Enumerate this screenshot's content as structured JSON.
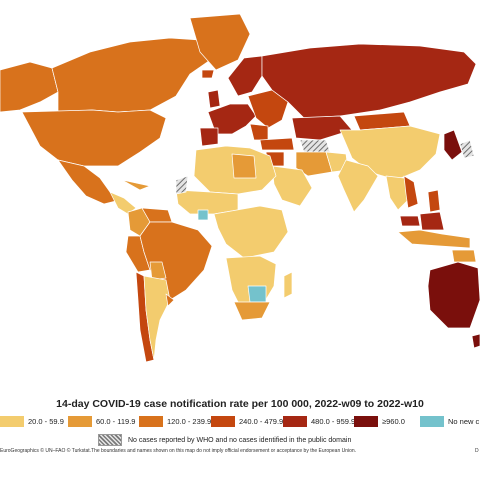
{
  "title": "14-day COVID-19 case notification rate per 100 000, 2022-w09 to 2022-w10",
  "colors": {
    "ocean": "#ffffff",
    "border": "#ffffff",
    "c1": "#f3cc6e",
    "c2": "#e59a37",
    "c3": "#d8721c",
    "c4": "#c4470f",
    "c5": "#a52713",
    "c6": "#7a0f0c",
    "none": "#74c2cc",
    "hatch": "#8a8a8a"
  },
  "legend": [
    {
      "label": "20.0 - 59.9",
      "color": "#f3cc6e"
    },
    {
      "label": "60.0 - 119.9",
      "color": "#e59a37"
    },
    {
      "label": "120.0 - 239.9",
      "color": "#d8721c"
    },
    {
      "label": "240.0 - 479.9",
      "color": "#c4470f"
    },
    {
      "label": "480.0 - 959.9",
      "color": "#a52713"
    },
    {
      "label": "≥960.0",
      "color": "#7a0f0c"
    },
    {
      "label": "No new c",
      "color": "#74c2cc"
    }
  ],
  "no_data_label": "No cases reported by WHO and no cases identified in the public domain",
  "footer": "EuroGeographics © UN–FAO © Turkstat.The boundaries and names shown on this map do not imply official endorsement or acceptance by the European Union.",
  "footer_right": "D"
}
